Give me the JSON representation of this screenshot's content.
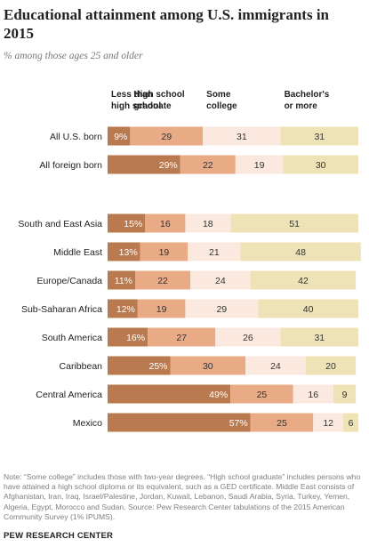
{
  "header": {
    "title": "Educational attainment among U.S. immigrants in 2015",
    "subtitle": "% among those ages 25 and older"
  },
  "chart_data": {
    "type": "bar",
    "orientation": "horizontal",
    "stacked": true,
    "title": "Educational attainment among U.S. immigrants in 2015",
    "subtitle": "% among those ages 25 and older",
    "categories": [
      "All U.S. born",
      "All foreign born",
      "South and East Asia",
      "Middle East",
      "Europe/Canada",
      "Sub-Saharan Africa",
      "South America",
      "Caribbean",
      "Central America",
      "Mexico"
    ],
    "series": [
      {
        "name": "Less than high school",
        "color": "#b97a4f",
        "values": [
          9,
          29,
          15,
          13,
          11,
          12,
          16,
          25,
          49,
          57
        ]
      },
      {
        "name": "High school graduate",
        "color": "#e8ab86",
        "values": [
          29,
          22,
          16,
          19,
          22,
          19,
          27,
          30,
          25,
          25
        ]
      },
      {
        "name": "Some college",
        "color": "#fbe9df",
        "values": [
          31,
          19,
          18,
          21,
          24,
          29,
          26,
          24,
          16,
          12
        ]
      },
      {
        "name": "Bachelor's or more",
        "color": "#ede3b6",
        "values": [
          31,
          30,
          51,
          48,
          42,
          40,
          31,
          20,
          9,
          6
        ]
      }
    ],
    "value_labels": [
      [
        "9%",
        "29",
        "31",
        "31"
      ],
      [
        "29%",
        "22",
        "19",
        "30"
      ],
      [
        "15%",
        "16",
        "18",
        "51"
      ],
      [
        "13%",
        "19",
        "21",
        "48"
      ],
      [
        "11%",
        "22",
        "24",
        "42"
      ],
      [
        "12%",
        "19",
        "29",
        "40"
      ],
      [
        "16%",
        "27",
        "26",
        "31"
      ],
      [
        "25%",
        "30",
        "24",
        "20"
      ],
      [
        "49%",
        "25",
        "16",
        "9"
      ],
      [
        "57%",
        "25",
        "12",
        "6"
      ]
    ],
    "legend_placement": "top",
    "xlim": [
      0,
      100
    ],
    "grid": false
  },
  "footer": {
    "note": "Note: “Some college” includes those with two-year degrees. “High school graduate” includes persons who have attained a high school diploma or its equivalent, such as a GED certificate. Middle East consists of Afghanistan, Iran, Iraq, Israel/Palestine, Jordan, Kuwait, Lebanon, Saudi Arabia, Syria, Turkey, Yemen, Algeria, Egypt, Morocco and Sudan.",
    "source": "Source: Pew Research Center tabulations of the 2015 American Community Survey (1% IPUMS).",
    "org": "PEW RESEARCH CENTER"
  }
}
